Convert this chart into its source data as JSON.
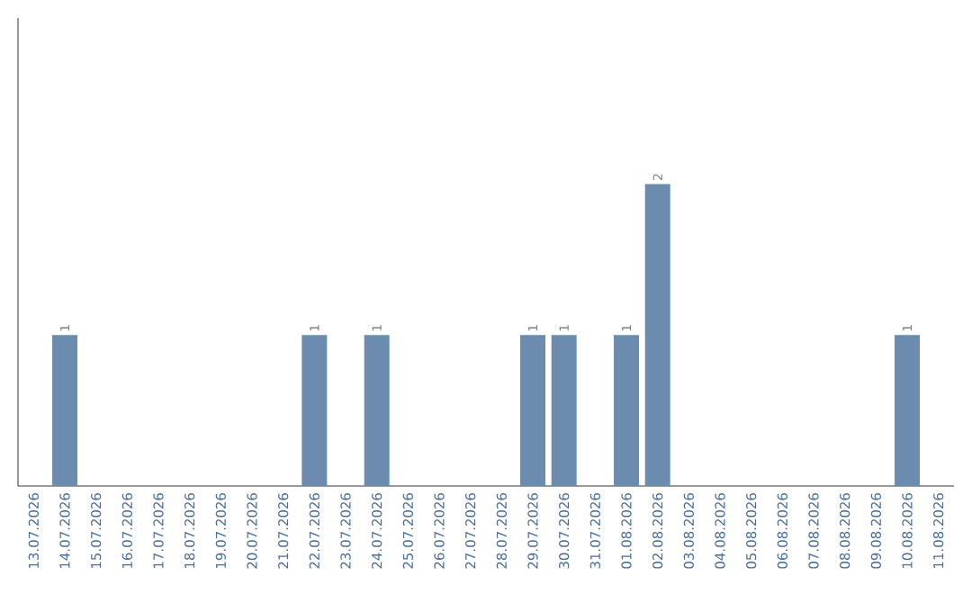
{
  "chart_data": {
    "type": "bar",
    "categories": [
      "13.07.2026",
      "14.07.2026",
      "15.07.2026",
      "16.07.2026",
      "17.07.2026",
      "18.07.2026",
      "19.07.2026",
      "20.07.2026",
      "21.07.2026",
      "22.07.2026",
      "23.07.2026",
      "24.07.2026",
      "25.07.2026",
      "26.07.2026",
      "27.07.2026",
      "28.07.2026",
      "29.07.2026",
      "30.07.2026",
      "31.07.2026",
      "01.08.2026",
      "02.08.2026",
      "03.08.2026",
      "04.08.2026",
      "05.08.2026",
      "06.08.2026",
      "07.08.2026",
      "08.08.2026",
      "09.08.2026",
      "10.08.2026",
      "11.08.2026"
    ],
    "values": [
      0,
      1,
      0,
      0,
      0,
      0,
      0,
      0,
      0,
      1,
      0,
      1,
      0,
      0,
      0,
      0,
      1,
      1,
      0,
      1,
      2,
      0,
      0,
      0,
      0,
      0,
      0,
      0,
      1,
      0
    ],
    "value_labels": [
      null,
      "1",
      null,
      null,
      null,
      null,
      null,
      null,
      null,
      "1",
      null,
      "1",
      null,
      null,
      null,
      null,
      "1",
      "1",
      null,
      "1",
      "2",
      null,
      null,
      null,
      null,
      null,
      null,
      null,
      "1",
      null
    ],
    "color": "#6b8cae",
    "tick_labels": "x"
  }
}
